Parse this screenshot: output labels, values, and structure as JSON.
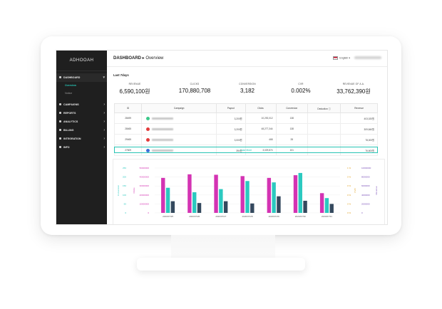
{
  "sidebar": {
    "logo": "ADHOOAH",
    "items": [
      {
        "label": "DASHBOARD",
        "icon": "home-icon",
        "active": true
      },
      {
        "label": "CAMPAIGNS",
        "icon": "flag-icon"
      },
      {
        "label": "REPORTS",
        "icon": "report-icon"
      },
      {
        "label": "ANALYTICS",
        "icon": "analytics-icon"
      },
      {
        "label": "BILLING",
        "icon": "billing-icon"
      },
      {
        "label": "INTEGRATION",
        "icon": "integration-icon"
      },
      {
        "label": "INFO",
        "icon": "info-icon"
      }
    ],
    "sub_items": [
      {
        "label": "Overview",
        "selected": true
      },
      {
        "label": "Notice",
        "selected": false
      }
    ]
  },
  "header": {
    "crumb_root": "DASHBOARD",
    "crumb_sep": "▸",
    "crumb_current": "Overview",
    "language": "English"
  },
  "period": "Last 7days",
  "kpis": [
    {
      "label": "REVENUE",
      "value": "6,590,100원"
    },
    {
      "label": "CLICKS",
      "value": "170,880,708"
    },
    {
      "label": "CONVERSION",
      "value": "3,182"
    },
    {
      "label": "CVR",
      "value": "0.002%"
    },
    {
      "label": "REVENUE OF A.A.",
      "value": "33,762,390원"
    }
  ],
  "table": {
    "headers": [
      "ID",
      "Campaign",
      "Payout",
      "Clicks",
      "Conversion",
      "Deduction ⓘ",
      "Revenue"
    ],
    "rows": [
      {
        "id": "28499",
        "dot": "#3cc98a",
        "payout": "3,200원",
        "clicks": "10,292,012",
        "conversion": "138",
        "deduction": "",
        "revenue": "403,020원"
      },
      {
        "id": "28465",
        "dot": "#e23b3b",
        "payout": "3,200원",
        "clicks": "48,277,344",
        "conversion": "138",
        "deduction": "",
        "revenue": "309,840원"
      },
      {
        "id": "29465",
        "dot": "#e23b3b",
        "payout": "3,000원",
        "clicks": "468",
        "conversion": "28",
        "deduction": "",
        "revenue": "78,000원"
      },
      {
        "id": "27609",
        "dot": "#3a6fd8",
        "payout": "394원",
        "clicks": "3,029,874",
        "conversion": "101",
        "deduction": "",
        "revenue": "76,600원"
      }
    ],
    "load_more": "Load More"
  },
  "chart_data": {
    "type": "bar",
    "categories": [
      "2020/07/25",
      "2020/07/26",
      "2020/07/27",
      "2020/07/28",
      "2020/07/29",
      "2020/07/30",
      "2020/07/31"
    ],
    "series": [
      {
        "color": "#d433b3",
        "values": [
          0.78,
          0.86,
          0.85,
          0.82,
          0.78,
          0.84,
          0.44
        ]
      },
      {
        "color": "#2bc9c0",
        "values": [
          0.56,
          0.46,
          0.53,
          0.71,
          0.68,
          0.89,
          0.33
        ]
      },
      {
        "color": "#34495e",
        "values": [
          0.26,
          0.22,
          0.26,
          0.21,
          0.37,
          0.27,
          0.2
        ]
      }
    ],
    "left_ticks_teal": [
      "250",
      "200",
      "150",
      "100",
      "50",
      "0"
    ],
    "left_ticks_pink": [
      "50000000",
      "40000000",
      "30000000",
      "20000000",
      "10000000",
      "0"
    ],
    "right_ticks_orange": [
      "1 %",
      "0 %",
      "0 %",
      "0 %",
      "0 %",
      "0 %"
    ],
    "right_ticks_purple": [
      "10000000",
      "8000000",
      "6000000",
      "4000000",
      "2000000",
      "0"
    ],
    "ylabel_left": "Conversion",
    "ylabel_left2": "Clicks",
    "ylabel_right": "CVR",
    "ylabel_right2": "Revenue",
    "grid": true
  }
}
